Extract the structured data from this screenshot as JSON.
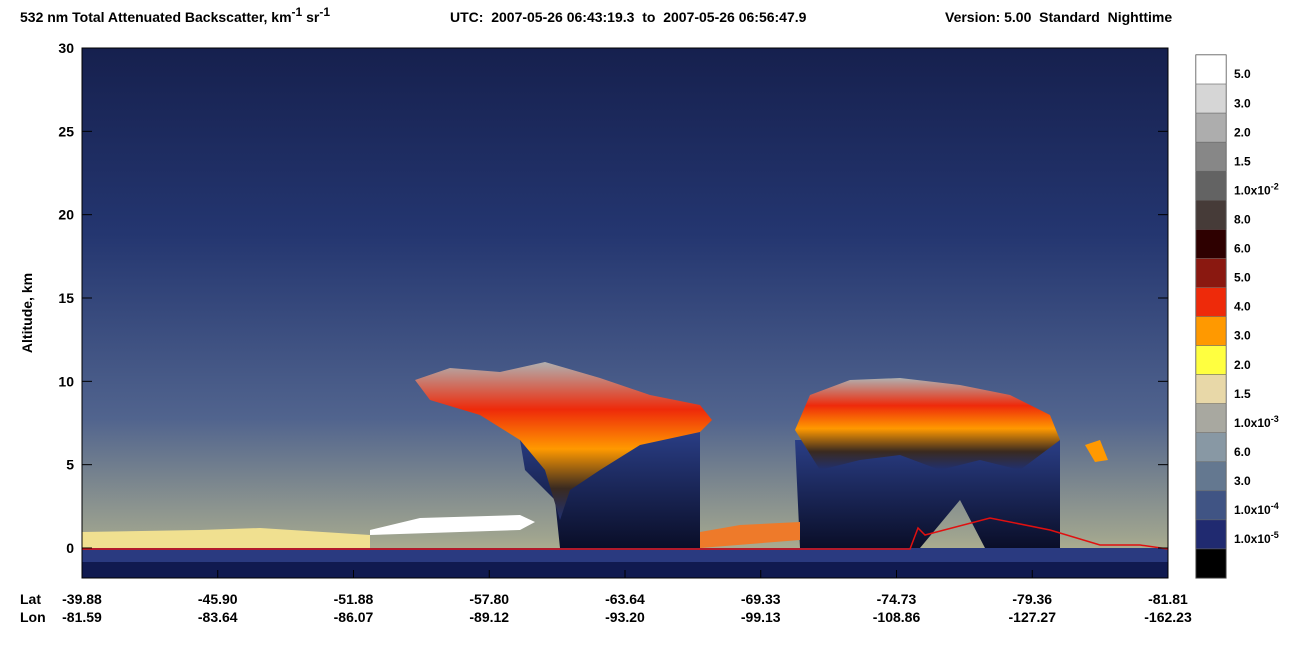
{
  "chart_data": {
    "type": "curtain",
    "title": {
      "prefix": "532 nm Total Attenuated Backscatter, km",
      "exp1": "-1",
      "mid": " sr",
      "exp2": "-1",
      "utc": "UTC:  2007-05-26 06:43:19.3  to  2007-05-26 06:56:47.9",
      "version": "Version: 5.00  Standard  Nighttime"
    },
    "y_label": "Altitude, km",
    "ylim": [
      -1.8,
      30
    ],
    "yticks": [
      0,
      5,
      10,
      15,
      20,
      25,
      30
    ],
    "row_labels": [
      "Lat",
      "Lon"
    ],
    "lat": [
      "-39.88",
      "-45.90",
      "-51.88",
      "-57.80",
      "-63.64",
      "-69.33",
      "-74.73",
      "-79.36",
      "-81.81"
    ],
    "lon": [
      "-81.59",
      "-83.64",
      "-86.07",
      "-89.12",
      "-93.20",
      "-99.13",
      "-108.86",
      "-127.27",
      "-162.23"
    ],
    "colorbar": {
      "colors": [
        "#ffffff",
        "#d6d6d6",
        "#adadad",
        "#878787",
        "#636363",
        "#463b38",
        "#2e0000",
        "#8a1810",
        "#ee2a0a",
        "#ff9900",
        "#ffff40",
        "#e8d8a8",
        "#a8a8a0",
        "#8898a4",
        "#647890",
        "#405484",
        "#202a70",
        "#000000"
      ],
      "labels": [
        "5.0",
        "3.0",
        "2.0",
        "1.5",
        {
          "base": "1.0x10",
          "exp": "-2"
        },
        "8.0",
        "6.0",
        "5.0",
        "4.0",
        "3.0",
        "2.0",
        "1.5",
        {
          "base": "1.0x10",
          "exp": "-3"
        },
        "6.0",
        "3.0",
        {
          "base": "1.0x10",
          "exp": "-4"
        },
        {
          "base": "1.0x10",
          "exp": "-5"
        }
      ]
    }
  }
}
